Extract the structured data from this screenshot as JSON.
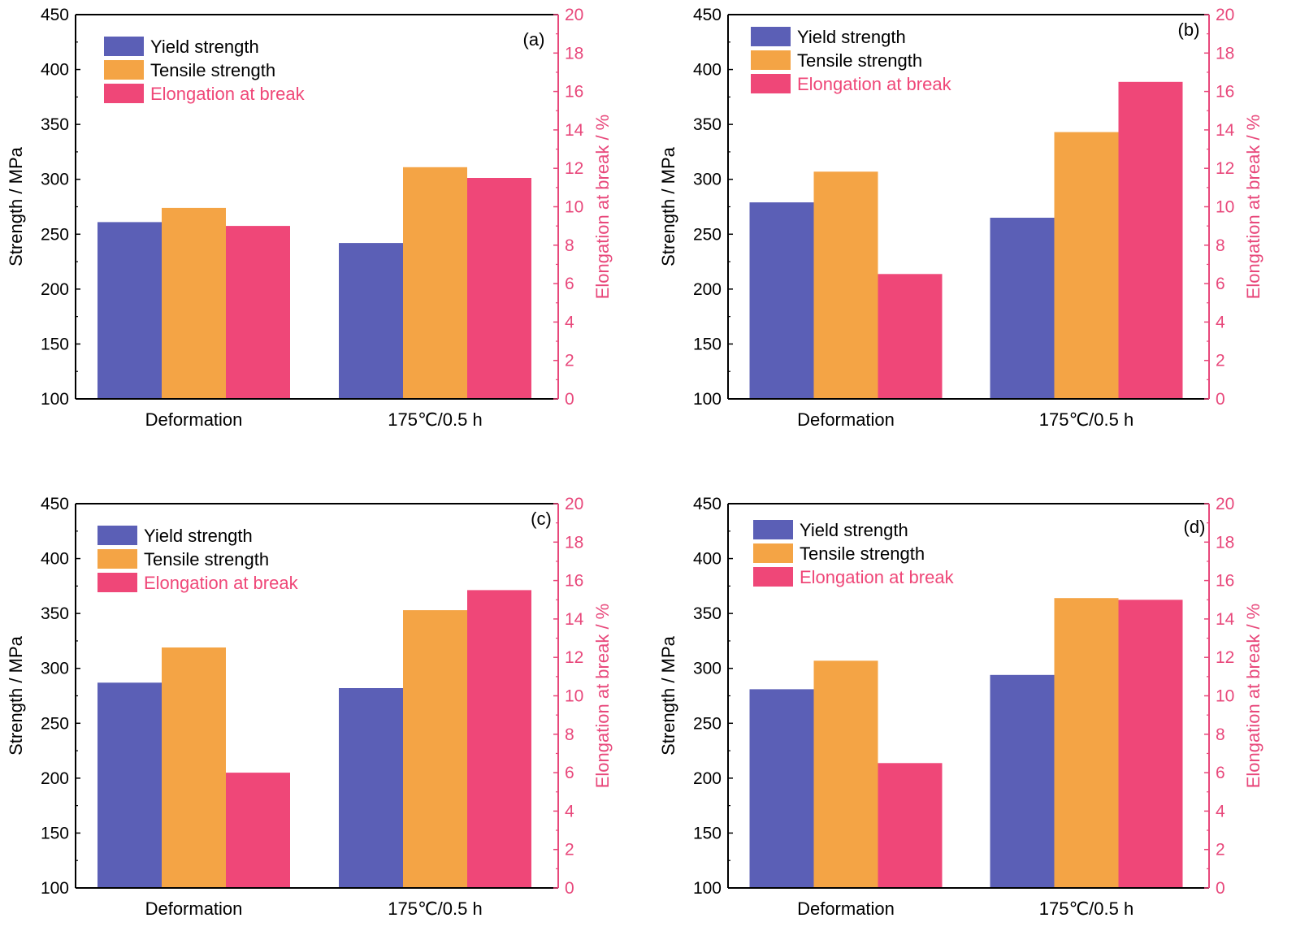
{
  "colors": {
    "yield": "#5b5fb6",
    "tensile": "#f4a445",
    "elongation": "#ef4778",
    "axis": "#000000",
    "right_axis": "#e8487b"
  },
  "chart_data": [
    {
      "type": "bar",
      "panel_label": "(a)",
      "categories": [
        "Deformation",
        "175℃/0.5 h"
      ],
      "series": [
        {
          "name": "Yield strength",
          "axis": "left",
          "values": [
            261,
            242
          ]
        },
        {
          "name": "Tensile strength",
          "axis": "left",
          "values": [
            274,
            311
          ]
        },
        {
          "name": "Elongation at break",
          "axis": "right",
          "values": [
            9.0,
            11.5
          ]
        }
      ],
      "ylabel": "Strength / MPa",
      "ylabel_right": "Elongation at break / %",
      "ylim": [
        100,
        450
      ],
      "ylim_right": [
        0,
        20
      ],
      "yticks": [
        "100",
        "150",
        "200",
        "250",
        "300",
        "350",
        "400",
        "450"
      ],
      "yticks_right": [
        "0",
        "2",
        "4",
        "6",
        "8",
        "10",
        "12",
        "14",
        "16",
        "18",
        "20"
      ],
      "legend": "top-left",
      "grid": false
    },
    {
      "type": "bar",
      "panel_label": "(b)",
      "categories": [
        "Deformation",
        "175℃/0.5 h"
      ],
      "series": [
        {
          "name": "Yield strength",
          "axis": "left",
          "values": [
            279,
            265
          ]
        },
        {
          "name": "Tensile strength",
          "axis": "left",
          "values": [
            307,
            343
          ]
        },
        {
          "name": "Elongation at break",
          "axis": "right",
          "values": [
            6.5,
            16.5
          ]
        }
      ],
      "ylabel": "Strength / MPa",
      "ylabel_right": "Elongation at break / %",
      "ylim": [
        100,
        450
      ],
      "ylim_right": [
        0,
        20
      ],
      "yticks": [
        "100",
        "150",
        "200",
        "250",
        "300",
        "350",
        "400",
        "450"
      ],
      "yticks_right": [
        "0",
        "2",
        "4",
        "6",
        "8",
        "10",
        "12",
        "14",
        "16",
        "18",
        "20"
      ],
      "legend": "top-left",
      "grid": false
    },
    {
      "type": "bar",
      "panel_label": "(c)",
      "categories": [
        "Deformation",
        "175℃/0.5 h"
      ],
      "series": [
        {
          "name": "Yield strength",
          "axis": "left",
          "values": [
            287,
            282
          ]
        },
        {
          "name": "Tensile strength",
          "axis": "left",
          "values": [
            319,
            353
          ]
        },
        {
          "name": "Elongation at break",
          "axis": "right",
          "values": [
            6.0,
            15.5
          ]
        }
      ],
      "ylabel": "Strength / MPa",
      "ylabel_right": "Elongation at break / %",
      "ylim": [
        100,
        450
      ],
      "ylim_right": [
        0,
        20
      ],
      "yticks": [
        "100",
        "150",
        "200",
        "250",
        "300",
        "350",
        "400",
        "450"
      ],
      "yticks_right": [
        "0",
        "2",
        "4",
        "6",
        "8",
        "10",
        "12",
        "14",
        "16",
        "18",
        "20"
      ],
      "legend": "top-left",
      "grid": false
    },
    {
      "type": "bar",
      "panel_label": "(d)",
      "categories": [
        "Deformation",
        "175℃/0.5 h"
      ],
      "series": [
        {
          "name": "Yield strength",
          "axis": "left",
          "values": [
            281,
            294
          ]
        },
        {
          "name": "Tensile strength",
          "axis": "left",
          "values": [
            307,
            364
          ]
        },
        {
          "name": "Elongation at break",
          "axis": "right",
          "values": [
            6.5,
            15.0
          ]
        }
      ],
      "ylabel": "Strength / MPa",
      "ylabel_right": "Elongation at break / %",
      "ylim": [
        100,
        450
      ],
      "ylim_right": [
        0,
        20
      ],
      "yticks": [
        "100",
        "150",
        "200",
        "250",
        "300",
        "350",
        "400",
        "450"
      ],
      "yticks_right": [
        "0",
        "2",
        "4",
        "6",
        "8",
        "10",
        "12",
        "14",
        "16",
        "18",
        "20"
      ],
      "legend": "top-left",
      "grid": false
    }
  ]
}
